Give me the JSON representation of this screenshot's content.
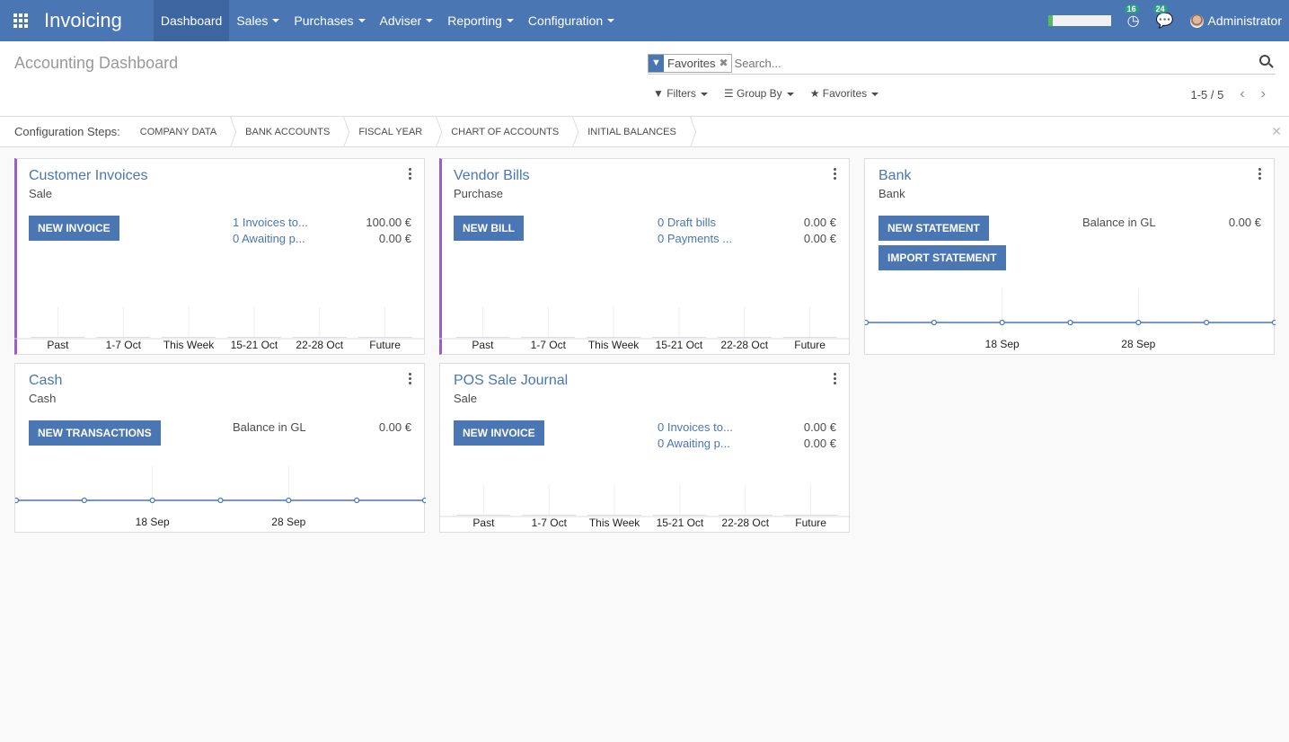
{
  "navbar": {
    "brand": "Invoicing",
    "menus": [
      "Dashboard",
      "Sales",
      "Purchases",
      "Adviser",
      "Reporting",
      "Configuration"
    ],
    "activity_count": "16",
    "message_count": "24",
    "user": "Administrator",
    "progress_percent": 5
  },
  "control_panel": {
    "title": "Accounting Dashboard",
    "facet_label": "Favorites",
    "search_placeholder": "Search...",
    "filters": "Filters",
    "group_by": "Group By",
    "favorites": "Favorites",
    "pager": "1-5 / 5"
  },
  "config_steps": {
    "label": "Configuration Steps:",
    "steps": [
      "COMPANY DATA",
      "BANK ACCOUNTS",
      "FISCAL YEAR",
      "CHART OF ACCOUNTS",
      "INITIAL BALANCES"
    ]
  },
  "cards": [
    {
      "title": "Customer Invoices",
      "type": "Sale",
      "buttons": [
        "NEW INVOICE"
      ],
      "stats": [
        {
          "label": "1 Invoices to...",
          "value": "100.00 €"
        },
        {
          "label": "0 Awaiting p...",
          "value": "0.00 €"
        }
      ],
      "chart": {
        "type": "bar",
        "categories": [
          "Past",
          "1-7 Oct",
          "This Week",
          "15-21 Oct",
          "22-28 Oct",
          "Future"
        ],
        "values": [
          0,
          0,
          0,
          0,
          0,
          0
        ]
      }
    },
    {
      "title": "Vendor Bills",
      "type": "Purchase",
      "buttons": [
        "NEW BILL"
      ],
      "stats": [
        {
          "label": "0 Draft bills",
          "value": "0.00 €"
        },
        {
          "label": "0 Payments ...",
          "value": "0.00 €"
        }
      ],
      "chart": {
        "type": "bar",
        "categories": [
          "Past",
          "1-7 Oct",
          "This Week",
          "15-21 Oct",
          "22-28 Oct",
          "Future"
        ],
        "values": [
          0,
          0,
          0,
          0,
          0,
          0
        ]
      }
    },
    {
      "title": "Bank",
      "type": "Bank",
      "buttons": [
        "NEW STATEMENT",
        "IMPORT STATEMENT"
      ],
      "stats": [
        {
          "label": "Balance in GL",
          "value": "0.00 €"
        }
      ],
      "chart": {
        "type": "line",
        "tick_labels": [
          "18 Sep",
          "28 Sep"
        ],
        "values": [
          0,
          0,
          0,
          0,
          0,
          0,
          0
        ]
      }
    },
    {
      "title": "Cash",
      "type": "Cash",
      "buttons": [
        "NEW TRANSACTIONS"
      ],
      "stats": [
        {
          "label": "Balance in GL",
          "value": "0.00 €"
        }
      ],
      "chart": {
        "type": "line",
        "tick_labels": [
          "18 Sep",
          "28 Sep"
        ],
        "values": [
          0,
          0,
          0,
          0,
          0,
          0,
          0
        ]
      }
    },
    {
      "title": "POS Sale Journal",
      "type": "Sale",
      "buttons": [
        "NEW INVOICE"
      ],
      "stats": [
        {
          "label": "0 Invoices to...",
          "value": "0.00 €"
        },
        {
          "label": "0 Awaiting p...",
          "value": "0.00 €"
        }
      ],
      "chart": {
        "type": "bar",
        "categories": [
          "Past",
          "1-7 Oct",
          "This Week",
          "15-21 Oct",
          "22-28 Oct",
          "Future"
        ],
        "values": [
          0,
          0,
          0,
          0,
          0,
          0
        ]
      }
    }
  ]
}
